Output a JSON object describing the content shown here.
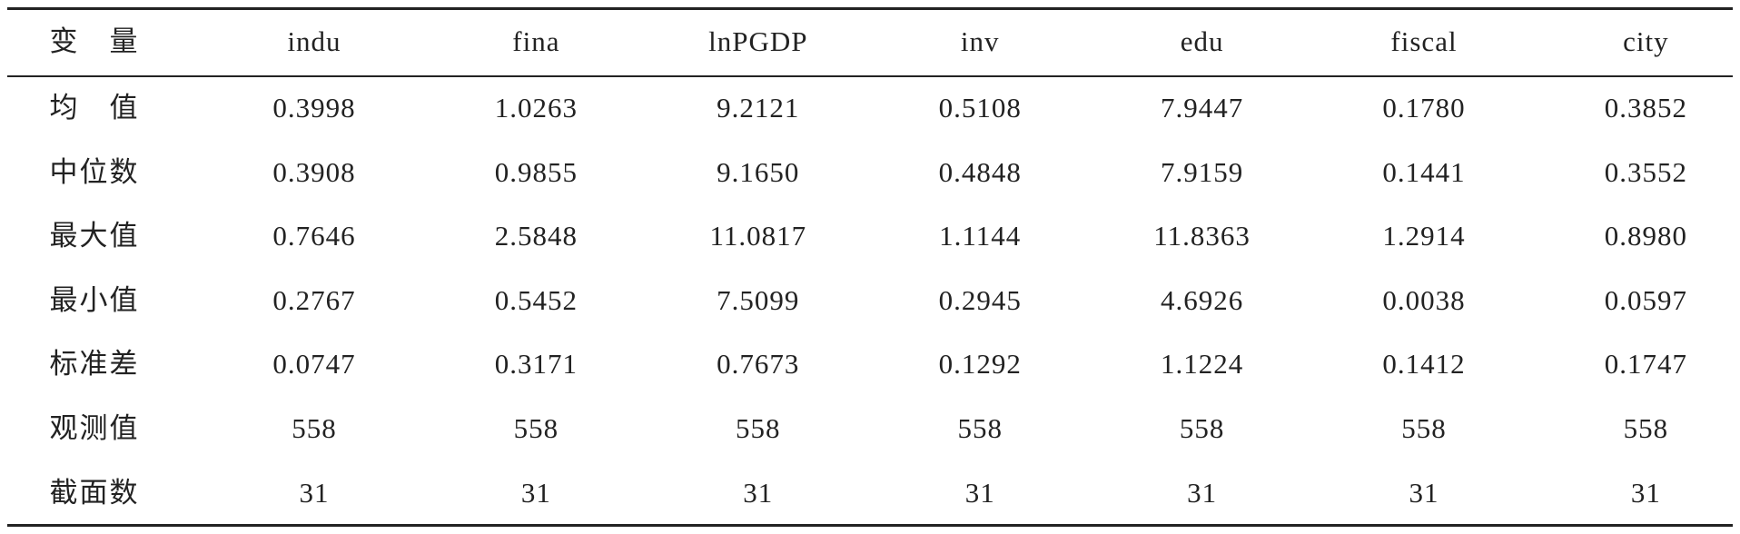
{
  "table": {
    "header": [
      "变　量",
      "indu",
      "fina",
      "lnPGDP",
      "inv",
      "edu",
      "fiscal",
      "city"
    ],
    "rows": [
      [
        "均　值",
        "0.3998",
        "1.0263",
        "9.2121",
        "0.5108",
        "7.9447",
        "0.1780",
        "0.3852"
      ],
      [
        "中位数",
        "0.3908",
        "0.9855",
        "9.1650",
        "0.4848",
        "7.9159",
        "0.1441",
        "0.3552"
      ],
      [
        "最大值",
        "0.7646",
        "2.5848",
        "11.0817",
        "1.1144",
        "11.8363",
        "1.2914",
        "0.8980"
      ],
      [
        "最小值",
        "0.2767",
        "0.5452",
        "7.5099",
        "0.2945",
        "4.6926",
        "0.0038",
        "0.0597"
      ],
      [
        "标准差",
        "0.0747",
        "0.3171",
        "0.7673",
        "0.1292",
        "1.1224",
        "0.1412",
        "0.1747"
      ],
      [
        "观测值",
        "558",
        "558",
        "558",
        "558",
        "558",
        "558",
        "558"
      ],
      [
        "截面数",
        "31",
        "31",
        "31",
        "31",
        "31",
        "31",
        "31"
      ]
    ]
  }
}
